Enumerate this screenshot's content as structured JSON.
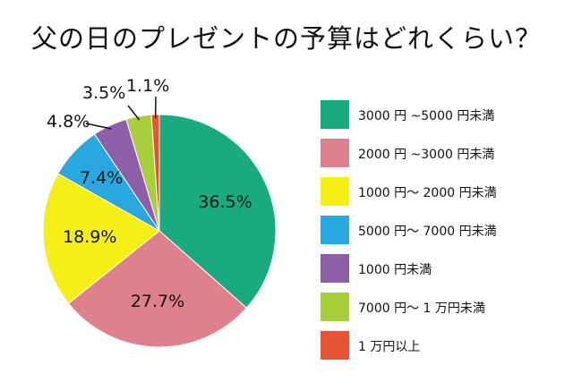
{
  "title": "父の日のプレゼントの予算はどれくらい？",
  "chart_data": {
    "type": "pie",
    "title": "父の日のプレゼントの予算はどれくらい？",
    "legend_position": "right",
    "slices": [
      {
        "label": "3000 円 ~5000 円未満",
        "value": 36.5,
        "value_label": "36.5%",
        "color": "#1aaa80"
      },
      {
        "label": "2000 円 ~3000 円未満",
        "value": 27.7,
        "value_label": "27.7%",
        "color": "#de818c"
      },
      {
        "label": "1000 円～ 2000 円未満",
        "value": 18.9,
        "value_label": "18.9%",
        "color": "#f6ef15"
      },
      {
        "label": "5000 円～ 7000 円未満",
        "value": 7.4,
        "value_label": "7.4%",
        "color": "#29a8df"
      },
      {
        "label": "1000 円未満",
        "value": 4.8,
        "value_label": "4.8%",
        "color": "#8d5fa8"
      },
      {
        "label": "7000 円～ 1 万円未満",
        "value": 3.5,
        "value_label": "3.5%",
        "color": "#a6cf39"
      },
      {
        "label": "1 万円以上",
        "value": 1.1,
        "value_label": "1.1%",
        "color": "#e85333"
      }
    ]
  }
}
